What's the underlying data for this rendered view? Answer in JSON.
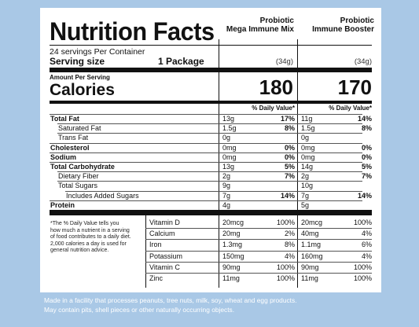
{
  "title": "Nutrition Facts",
  "columns": [
    {
      "name": "Probiotic\nMega Immune Mix",
      "serving_weight": "(34g)",
      "calories": "180"
    },
    {
      "name": "Probiotic\nImmune Booster",
      "serving_weight": "(34g)",
      "calories": "170"
    }
  ],
  "servings_per_container": "24 servings Per Container",
  "serving_size_label": "Serving size",
  "serving_size_value": "1 Package",
  "amount_per_serving": "Amount Per Serving",
  "calories_label": "Calories",
  "dv_header": "% Daily Value*",
  "nutrients": [
    {
      "label": "Total Fat",
      "bold": true,
      "indent": 0,
      "a_amt": "13g",
      "a_dv": "17%",
      "b_amt": "11g",
      "b_dv": "14%"
    },
    {
      "label": "Saturated Fat",
      "bold": false,
      "indent": 1,
      "a_amt": "1.5g",
      "a_dv": "8%",
      "b_amt": "1.5g",
      "b_dv": "8%"
    },
    {
      "label": "Trans Fat",
      "bold": false,
      "indent": 1,
      "a_amt": "0g",
      "a_dv": "",
      "b_amt": "0g",
      "b_dv": ""
    },
    {
      "label": "Cholesterol",
      "bold": true,
      "indent": 0,
      "a_amt": "0mg",
      "a_dv": "0%",
      "b_amt": "0mg",
      "b_dv": "0%"
    },
    {
      "label": "Sodium",
      "bold": true,
      "indent": 0,
      "a_amt": "0mg",
      "a_dv": "0%",
      "b_amt": "0mg",
      "b_dv": "0%"
    },
    {
      "label": "Total Carbohydrate",
      "bold": true,
      "indent": 0,
      "a_amt": "13g",
      "a_dv": "5%",
      "b_amt": "14g",
      "b_dv": "5%"
    },
    {
      "label": "Dietary Fiber",
      "bold": false,
      "indent": 1,
      "a_amt": "2g",
      "a_dv": "7%",
      "b_amt": "2g",
      "b_dv": "7%"
    },
    {
      "label": "Total Sugars",
      "bold": false,
      "indent": 1,
      "a_amt": "9g",
      "a_dv": "",
      "b_amt": "10g",
      "b_dv": ""
    },
    {
      "label": "Includes Added Sugars",
      "bold": false,
      "indent": 2,
      "a_amt": "7g",
      "a_dv": "14%",
      "b_amt": "7g",
      "b_dv": "14%"
    },
    {
      "label": "Protein",
      "bold": true,
      "indent": 0,
      "a_amt": "4g",
      "a_dv": "",
      "b_amt": "5g",
      "b_dv": ""
    }
  ],
  "footnote": "*The % Daily Value tells you\nhow  much a nutrient in a serving\nof food contributes to a daily diet.\n2,000 calories a day is used for\ngeneral nutrition advice.",
  "vitamins": [
    {
      "label": "Vitamin D",
      "a_amt": "20mcg",
      "a_dv": "100%",
      "b_amt": "20mcg",
      "b_dv": "100%"
    },
    {
      "label": "Calcium",
      "a_amt": "20mg",
      "a_dv": "2%",
      "b_amt": "40mg",
      "b_dv": "4%"
    },
    {
      "label": "Iron",
      "a_amt": "1.3mg",
      "a_dv": "8%",
      "b_amt": "1.1mg",
      "b_dv": "6%"
    },
    {
      "label": "Potassium",
      "a_amt": "150mg",
      "a_dv": "4%",
      "b_amt": "160mg",
      "b_dv": "4%"
    },
    {
      "label": "Vitamin C",
      "a_amt": "90mg",
      "a_dv": "100%",
      "b_amt": "90mg",
      "b_dv": "100%"
    },
    {
      "label": "Zinc",
      "a_amt": "11mg",
      "a_dv": "100%",
      "b_amt": "11mg",
      "b_dv": "100%"
    }
  ],
  "footer": {
    "line1": "Made in a facility that processes peanuts, tree nuts, milk, soy, wheat and egg products.",
    "line2": "May contain pits, shell pieces or other naturally occurring objects."
  },
  "colors": {
    "background": "#a9c8e6",
    "panel": "#ffffff",
    "ink": "#111111"
  }
}
